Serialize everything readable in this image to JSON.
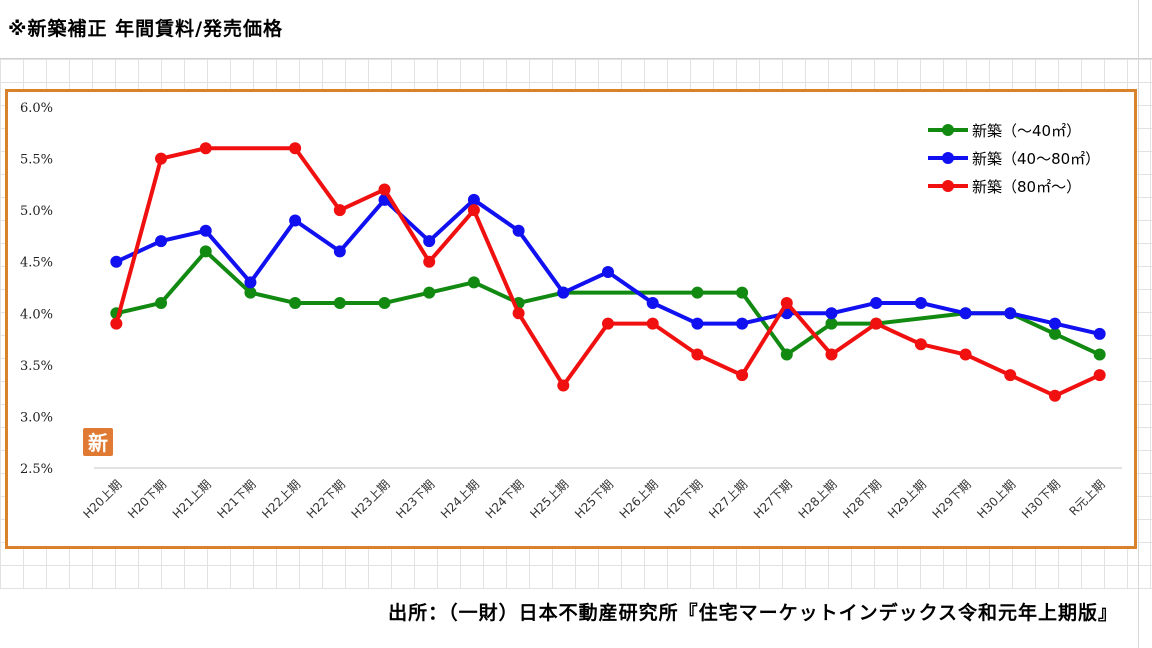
{
  "page": {
    "title": "※新築補正 年間賃料/発売価格",
    "source": "出所：（一財）日本不動産研究所『住宅マーケットインデックス令和元年上期版』",
    "badge": "新"
  },
  "chart_data": {
    "type": "line",
    "categories": [
      "H20上期",
      "H20下期",
      "H21上期",
      "H21下期",
      "H22上期",
      "H22下期",
      "H23上期",
      "H23下期",
      "H24上期",
      "H24下期",
      "H25上期",
      "H25下期",
      "H26上期",
      "H26下期",
      "H27上期",
      "H27下期",
      "H28上期",
      "H28下期",
      "H29上期",
      "H29下期",
      "H30上期",
      "H30下期",
      "R元上期"
    ],
    "ylim": [
      2.5,
      6.0
    ],
    "yticks": [
      "2.5%",
      "3.0%",
      "3.5%",
      "4.0%",
      "4.5%",
      "5.0%",
      "5.5%",
      "6.0%"
    ],
    "ytick_values": [
      2.5,
      3.0,
      3.5,
      4.0,
      4.5,
      5.0,
      5.5,
      6.0
    ],
    "legend_position": "top-right",
    "series": [
      {
        "name": "新築（～40㎡）",
        "color": "#128a12",
        "values": [
          4.0,
          4.1,
          4.6,
          4.2,
          4.1,
          4.1,
          4.1,
          4.2,
          4.3,
          4.1,
          4.2,
          null,
          null,
          4.2,
          4.2,
          3.6,
          3.9,
          3.9,
          null,
          4.0,
          4.0,
          3.8,
          3.6
        ]
      },
      {
        "name": "新築（40～80㎡）",
        "color": "#1010f0",
        "values": [
          4.5,
          4.7,
          4.8,
          4.3,
          4.9,
          4.6,
          5.1,
          4.7,
          5.1,
          4.8,
          4.2,
          4.4,
          4.1,
          3.9,
          3.9,
          4.0,
          4.0,
          4.1,
          4.1,
          4.0,
          4.0,
          3.9,
          3.8
        ]
      },
      {
        "name": "新築（80㎡～）",
        "color": "#f01010",
        "values": [
          3.9,
          5.5,
          5.6,
          null,
          5.6,
          5.0,
          5.2,
          4.5,
          5.0,
          4.0,
          3.3,
          3.9,
          3.9,
          3.6,
          3.4,
          4.1,
          3.6,
          3.9,
          3.7,
          3.6,
          3.4,
          3.2,
          3.4
        ]
      }
    ]
  }
}
